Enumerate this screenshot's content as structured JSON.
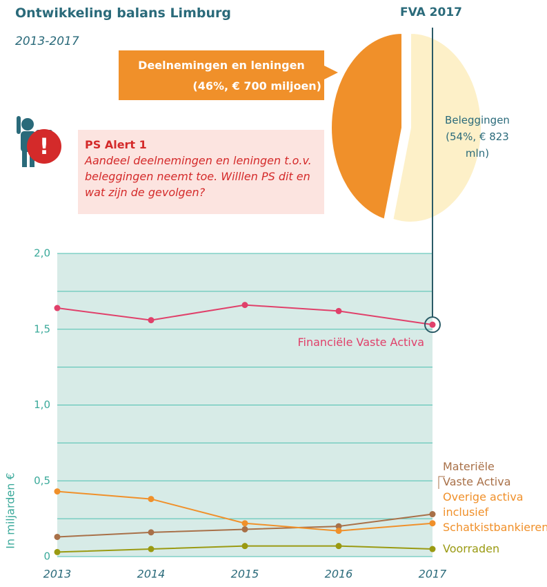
{
  "title": "Ontwikkeling balans Limburg",
  "subtitle": "2013-2017",
  "chart_data": [
    {
      "type": "line",
      "x": [
        "2013",
        "2014",
        "2015",
        "2016",
        "2017"
      ],
      "y_axis_label": "In miljarden €",
      "ylim": [
        0,
        2.0
      ],
      "yticks": [
        0,
        {
          "value": 0.5,
          "label": "0,5"
        },
        {
          "value": 1.0,
          "label": "1,0"
        },
        {
          "value": 1.5,
          "label": "1,5"
        },
        {
          "value": 2.0,
          "label": "2,0"
        }
      ],
      "minor_yticks": [
        0.25,
        0.75,
        1.25,
        1.75
      ],
      "grid": true,
      "series": [
        {
          "name": "Financiële Vaste Activa",
          "color": "#e0406a",
          "values": [
            1.64,
            1.56,
            1.66,
            1.62,
            1.53
          ]
        },
        {
          "name": "Materiële Vaste Activa",
          "color": "#a87048",
          "values": [
            0.13,
            0.16,
            0.18,
            0.2,
            0.28
          ]
        },
        {
          "name": "Overige activa inclusief Schatkistbankieren",
          "color": "#f0902a",
          "values": [
            0.43,
            0.38,
            0.22,
            0.17,
            0.22
          ]
        },
        {
          "name": "Voorraden",
          "color": "#9a9a12",
          "values": [
            0.03,
            0.05,
            0.07,
            0.07,
            0.05
          ]
        }
      ]
    },
    {
      "type": "pie",
      "title": "FVA 2017",
      "categories": [
        "Deelnemingen en leningen",
        "Beleggingen"
      ],
      "values": [
        46,
        54
      ],
      "value_labels": [
        "(46%, € 700 miljoen)",
        "(54%, € 823 mln)"
      ],
      "colors": [
        "#f0902a",
        "#fdf0c8"
      ]
    }
  ],
  "alert": {
    "title": "PS Alert 1",
    "text": "Aandeel deelnemingen en leningen t.o.v. beleggingen neemt toe. Willlen PS dit en wat zijn de gevolgen?"
  }
}
